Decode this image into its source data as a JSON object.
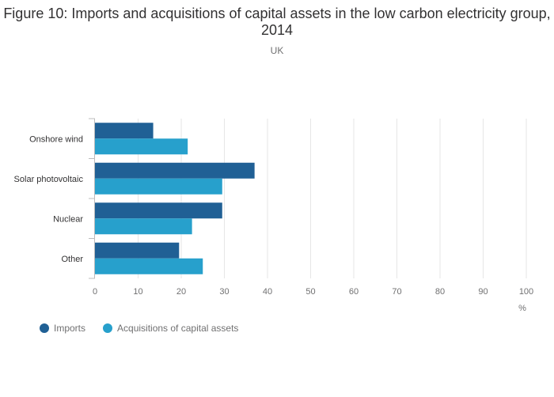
{
  "chart_data": {
    "type": "bar",
    "orientation": "horizontal",
    "title": "Figure 10: Imports and acquisitions of capital assets in the low carbon electricity group, 2014",
    "subtitle": "UK",
    "categories": [
      "Onshore wind",
      "Solar photovoltaic",
      "Nuclear",
      "Other"
    ],
    "series": [
      {
        "name": "Imports",
        "color": "#206095",
        "values": [
          13.5,
          37.0,
          29.5,
          19.5
        ]
      },
      {
        "name": "Acquisitions of capital assets",
        "color": "#27a0cc",
        "values": [
          21.5,
          29.5,
          22.5,
          25.0
        ]
      }
    ],
    "xlabel": "%",
    "xlim": [
      0,
      100
    ],
    "xticks": [
      0,
      10,
      20,
      30,
      40,
      50,
      60,
      70,
      80,
      90,
      100
    ],
    "grid": true,
    "legend_position": "bottom-left"
  }
}
